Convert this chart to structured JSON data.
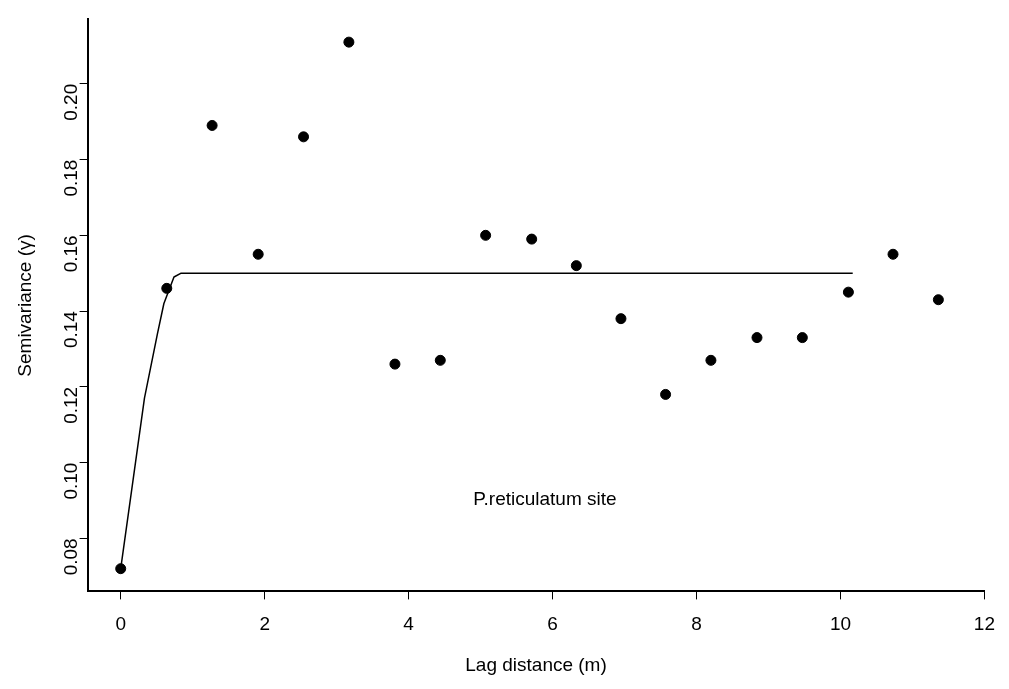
{
  "chart_data": {
    "type": "scatter",
    "xlabel": "Lag distance (m)",
    "ylabel": "Semivariance (γ)",
    "annotations": [
      "P.reticulatum site"
    ],
    "xlim": [
      -0.46,
      12
    ],
    "xticks": [
      0,
      2,
      4,
      6,
      8,
      10,
      12
    ],
    "ylim": [
      0.066,
      0.217
    ],
    "yticks": [
      0.08,
      {
        "value": 0.1,
        "label": "0.10"
      },
      0.12,
      0.14,
      0.16,
      0.18,
      {
        "value": 0.2,
        "label": "0.20"
      }
    ],
    "grid": false,
    "legend": false,
    "series": [
      {
        "type": "scatter",
        "color": "#000000",
        "marker": "circle",
        "x": [
          0,
          0.64,
          1.27,
          1.91,
          2.54,
          3.17,
          3.81,
          4.44,
          5.07,
          5.71,
          6.33,
          6.95,
          7.57,
          8.2,
          8.84,
          9.47,
          10.11,
          10.73,
          11.36
        ],
        "values": [
          0.072,
          0.146,
          0.189,
          0.155,
          0.186,
          0.211,
          0.126,
          0.127,
          0.16,
          0.159,
          0.152,
          0.138,
          0.118,
          0.127,
          0.133,
          0.133,
          0.145,
          0.155,
          0.143
        ]
      },
      {
        "type": "line",
        "color": "#000000",
        "marker": "none",
        "line_style": "solid",
        "x": [
          0,
          0.33,
          0.51,
          0.6,
          0.74,
          0.84,
          10.17
        ],
        "values": [
          0.072,
          0.117,
          0.134,
          0.142,
          0.149,
          0.15,
          0.15
        ]
      }
    ]
  }
}
